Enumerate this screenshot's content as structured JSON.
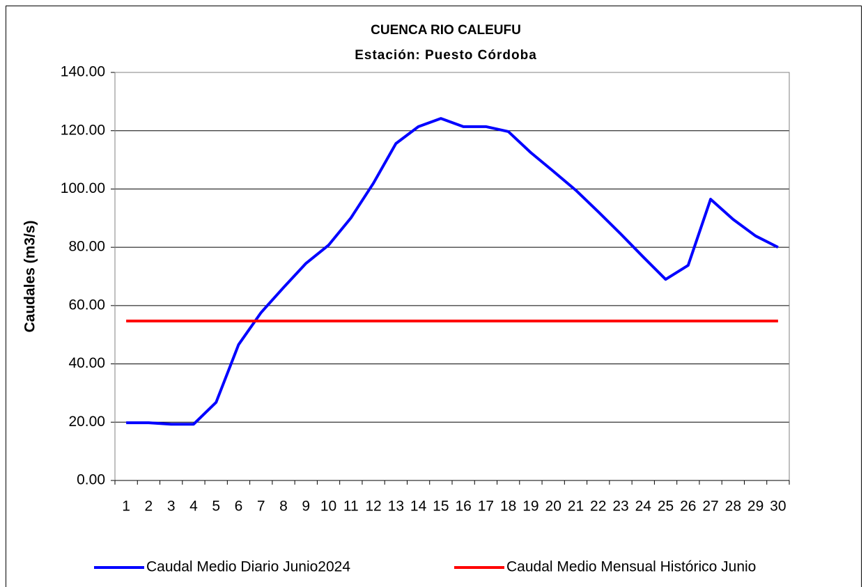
{
  "chart_data": {
    "type": "line",
    "title": "CUENCA RIO CALEUFU",
    "subtitle": "Estación: Puesto Córdoba",
    "y_label": "Caudales (m3/s)",
    "categories": [
      "1",
      "2",
      "3",
      "4",
      "5",
      "6",
      "7",
      "8",
      "9",
      "10",
      "11",
      "12",
      "13",
      "14",
      "15",
      "16",
      "17",
      "18",
      "19",
      "20",
      "21",
      "22",
      "23",
      "24",
      "25",
      "26",
      "27",
      "28",
      "29",
      "30"
    ],
    "series": [
      {
        "name": "Caudal Medio Diario Junio2024",
        "color": "#0000ff",
        "values": [
          19.8,
          19.8,
          19.3,
          19.3,
          26.8,
          46.6,
          57.6,
          66.2,
          74.5,
          80.7,
          90.1,
          102,
          115.6,
          121.4,
          124.2,
          121.4,
          121.4,
          119.7,
          112.5,
          106.1,
          99.6,
          92.2,
          84.6,
          76.7,
          69,
          73.8,
          96.5,
          89.6,
          83.9,
          80
        ]
      },
      {
        "name": "Caudal Medio Mensual Histórico Junio",
        "color": "#ff0000",
        "values": [
          54.7,
          54.7,
          54.7,
          54.7,
          54.7,
          54.7,
          54.7,
          54.7,
          54.7,
          54.7,
          54.7,
          54.7,
          54.7,
          54.7,
          54.7,
          54.7,
          54.7,
          54.7,
          54.7,
          54.7,
          54.7,
          54.7,
          54.7,
          54.7,
          54.7,
          54.7,
          54.7,
          54.7,
          54.7,
          54.7
        ]
      }
    ],
    "ylim": [
      0,
      140
    ],
    "yticks": [
      {
        "value": 0,
        "label": "0.00"
      },
      {
        "value": 20,
        "label": "20.00"
      },
      {
        "value": 40,
        "label": "40.00"
      },
      {
        "value": 60,
        "label": "60.00"
      },
      {
        "value": 80,
        "label": "80.00"
      },
      {
        "value": 100,
        "label": "100.00"
      },
      {
        "value": 120,
        "label": "120.00"
      },
      {
        "value": 140,
        "label": "140.00"
      }
    ],
    "grid": true,
    "legend": "bottom"
  }
}
